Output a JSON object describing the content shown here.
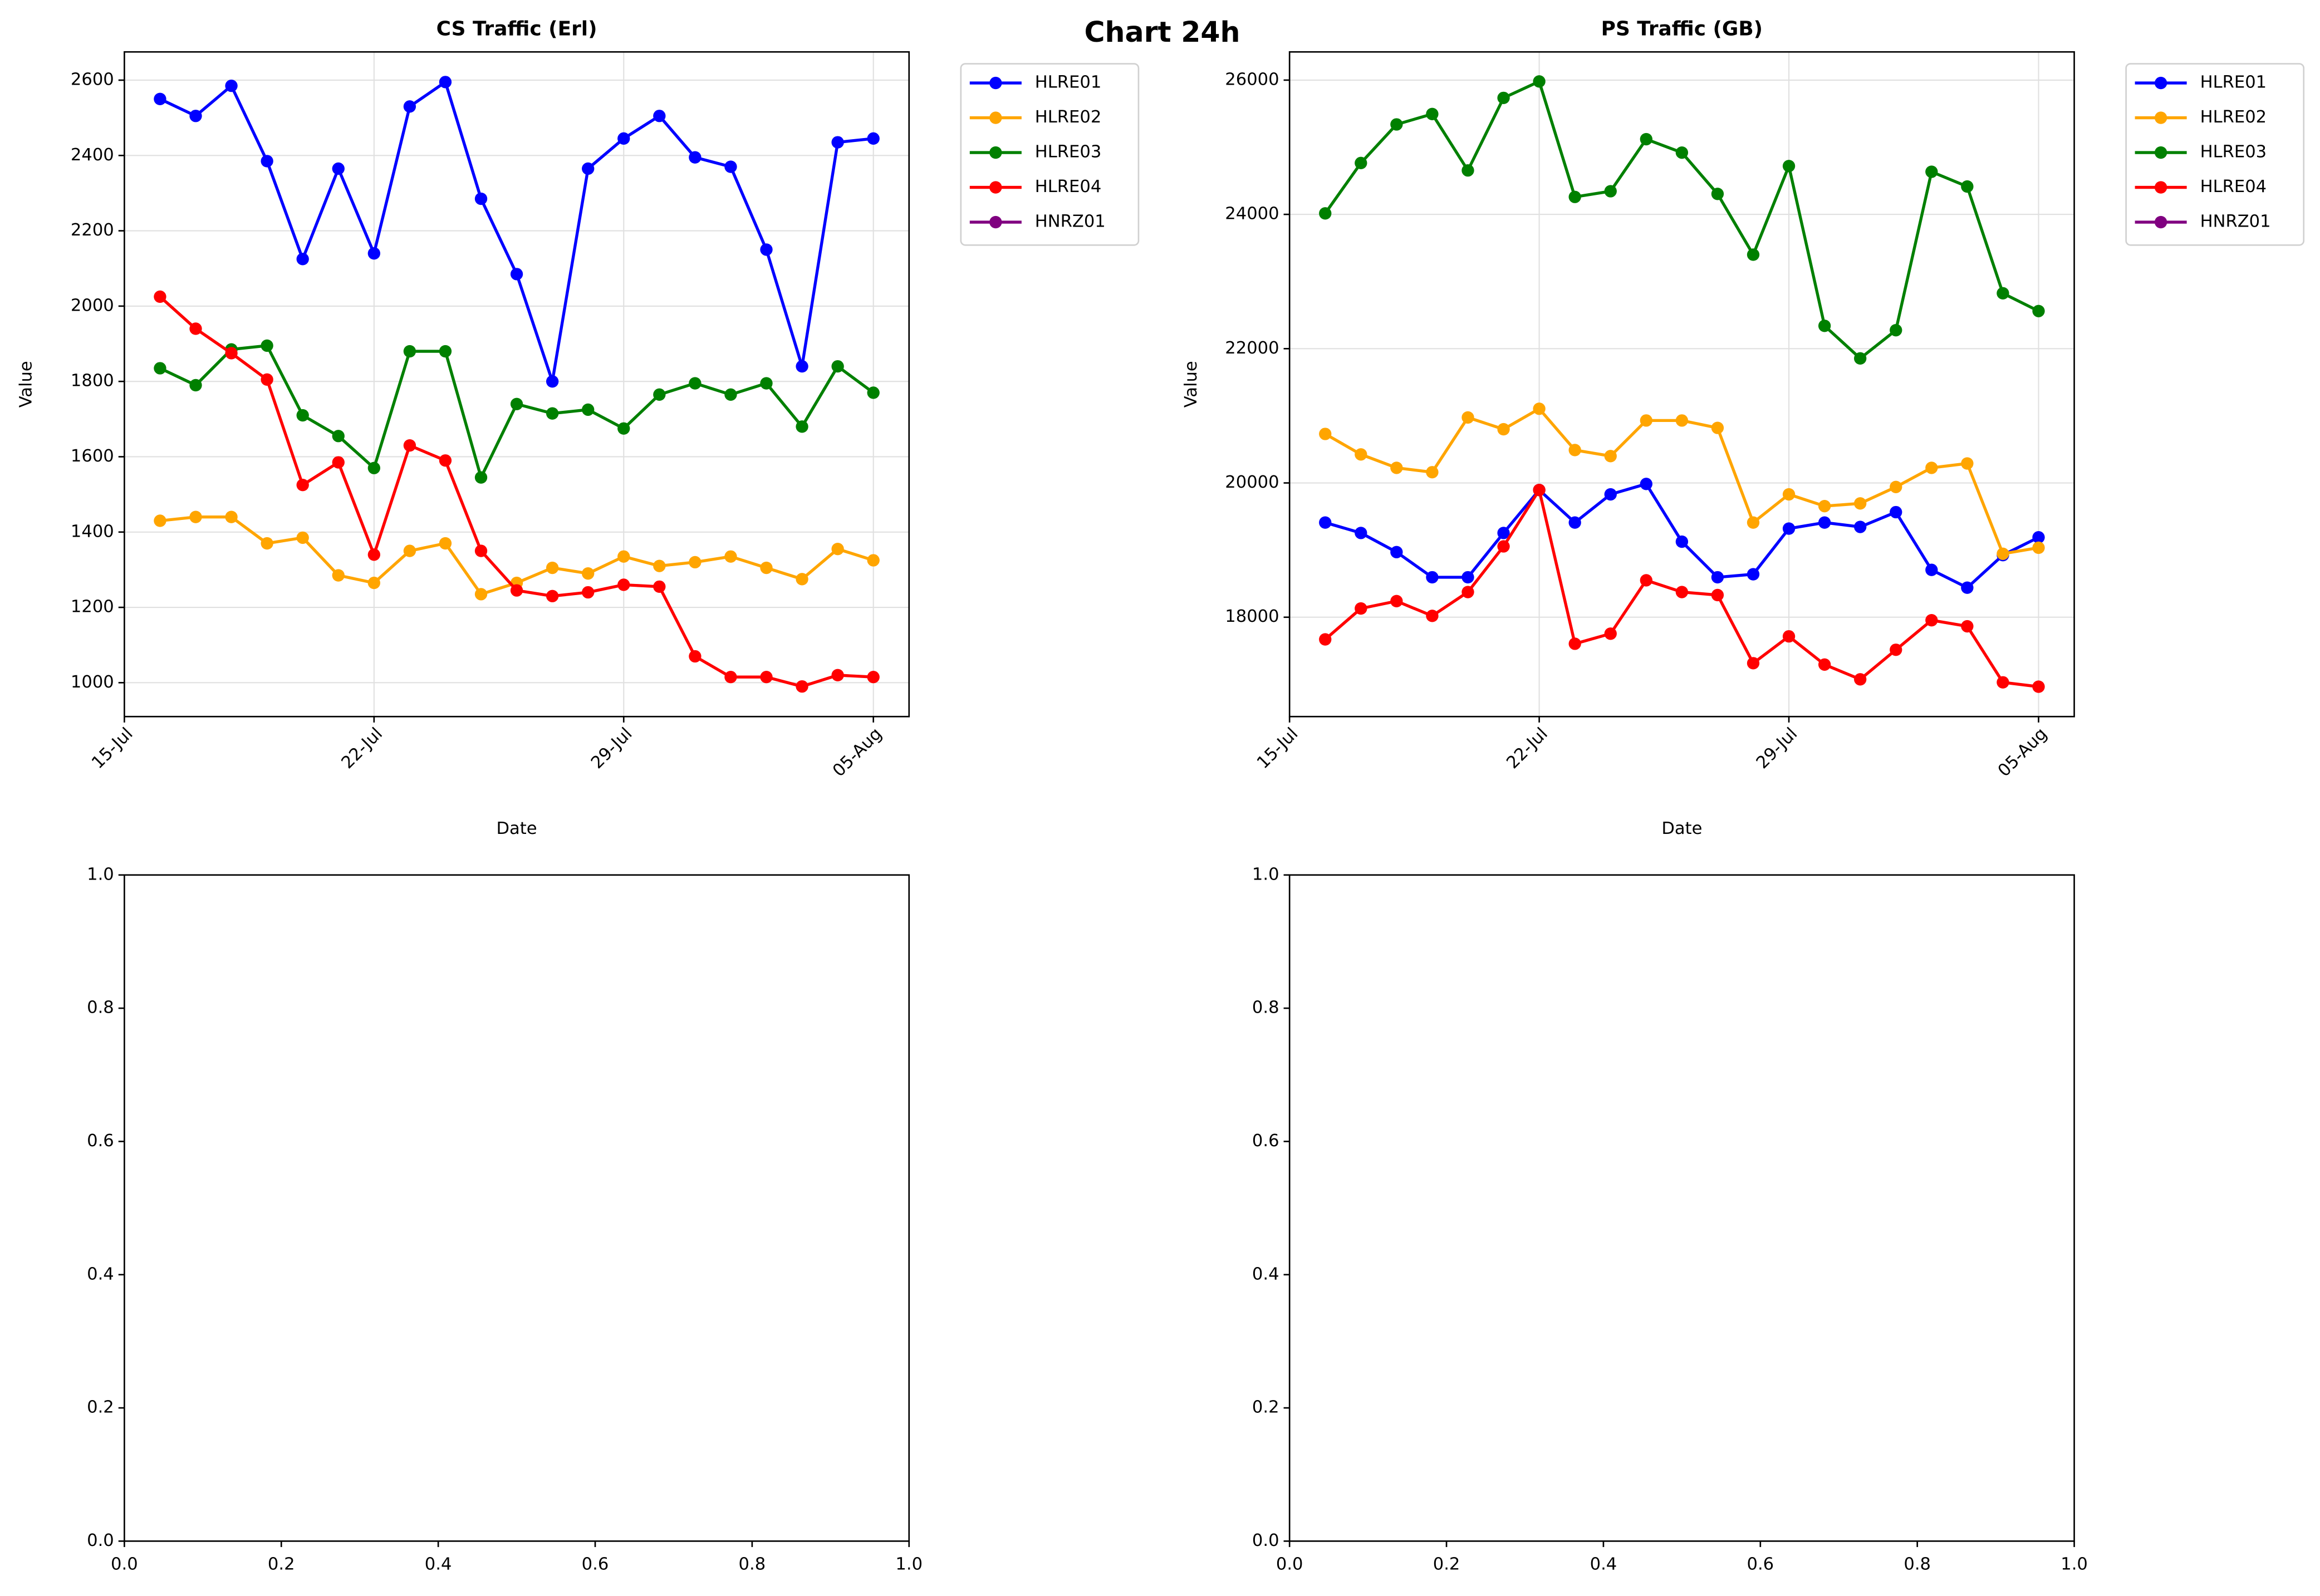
{
  "title": "Chart 24h",
  "chart_data": [
    {
      "type": "line",
      "title": "CS Traffic (Erl)",
      "xlabel": "Date",
      "ylabel": "Value",
      "x": [
        "16-Jul",
        "17-Jul",
        "18-Jul",
        "19-Jul",
        "20-Jul",
        "21-Jul",
        "22-Jul",
        "23-Jul",
        "24-Jul",
        "25-Jul",
        "26-Jul",
        "27-Jul",
        "28-Jul",
        "29-Jul",
        "30-Jul",
        "31-Jul",
        "01-Aug",
        "02-Aug",
        "03-Aug",
        "04-Aug",
        "05-Aug"
      ],
      "series": [
        {
          "name": "HLRE01",
          "color": "#0000ff",
          "values": [
            2550,
            2505,
            2585,
            2385,
            2125,
            2365,
            2140,
            2530,
            2595,
            2285,
            2085,
            1800,
            2365,
            2445,
            2505,
            2395,
            2370,
            2150,
            1840,
            2435,
            2445
          ]
        },
        {
          "name": "HLRE02",
          "color": "#ffa500",
          "values": [
            1430,
            1440,
            1440,
            1370,
            1385,
            1285,
            1265,
            1350,
            1370,
            1235,
            1265,
            1305,
            1290,
            1335,
            1310,
            1320,
            1335,
            1305,
            1275,
            1355,
            1325
          ]
        },
        {
          "name": "HLRE03",
          "color": "#008000",
          "values": [
            1835,
            1790,
            1885,
            1895,
            1710,
            1655,
            1570,
            1880,
            1880,
            1545,
            1740,
            1715,
            1725,
            1675,
            1765,
            1795,
            1765,
            1795,
            1680,
            1840,
            1770
          ]
        },
        {
          "name": "HLRE04",
          "color": "#ff0000",
          "values": [
            2025,
            1940,
            1875,
            1805,
            1525,
            1585,
            1340,
            1630,
            1590,
            1350,
            1245,
            1230,
            1240,
            1260,
            1255,
            1070,
            1015,
            1015,
            990,
            1020,
            1015
          ]
        },
        {
          "name": "HNRZ01",
          "color": "#800080",
          "values": [
            null,
            null,
            null,
            null,
            null,
            null,
            null,
            null,
            null,
            null,
            null,
            null,
            null,
            null,
            null,
            null,
            null,
            null,
            null,
            null,
            null
          ]
        }
      ],
      "xlim": [
        "15-Jul",
        "06-Aug"
      ],
      "xticks": [
        "15-Jul",
        "22-Jul",
        "29-Jul",
        "05-Aug"
      ],
      "xtick_rotation": 45,
      "ylim": [
        910,
        2675
      ],
      "yticks": [
        1000,
        1200,
        1400,
        1600,
        1800,
        2000,
        2200,
        2400,
        2600
      ],
      "grid": true,
      "legend": "outside-right"
    },
    {
      "type": "line",
      "title": "PS Traffic (GB)",
      "xlabel": "Date",
      "ylabel": "Value",
      "x": [
        "16-Jul",
        "17-Jul",
        "18-Jul",
        "19-Jul",
        "20-Jul",
        "21-Jul",
        "22-Jul",
        "23-Jul",
        "24-Jul",
        "25-Jul",
        "26-Jul",
        "27-Jul",
        "28-Jul",
        "29-Jul",
        "30-Jul",
        "31-Jul",
        "01-Aug",
        "02-Aug",
        "03-Aug",
        "04-Aug",
        "05-Aug"
      ],
      "series": [
        {
          "name": "HLRE01",
          "color": "#0000ff",
          "values": [
            19410,
            19255,
            18970,
            18595,
            18595,
            19255,
            19895,
            19410,
            19830,
            19985,
            19125,
            18595,
            18640,
            19320,
            19410,
            19345,
            19565,
            18705,
            18440,
            18925,
            19190
          ]
        },
        {
          "name": "HLRE02",
          "color": "#ffa500",
          "values": [
            20730,
            20425,
            20225,
            20160,
            20975,
            20800,
            21105,
            20490,
            20400,
            20930,
            20930,
            20820,
            19410,
            19830,
            19655,
            19695,
            19940,
            20225,
            20290,
            18945,
            19035
          ]
        },
        {
          "name": "HLRE03",
          "color": "#008000",
          "values": [
            24015,
            24765,
            25340,
            25495,
            24655,
            25735,
            25980,
            24260,
            24345,
            25120,
            24920,
            24305,
            23400,
            24720,
            22340,
            21855,
            22275,
            24635,
            24415,
            22825,
            22560
          ]
        },
        {
          "name": "HLRE04",
          "color": "#ff0000",
          "values": [
            17670,
            18130,
            18240,
            18020,
            18375,
            19055,
            19895,
            17605,
            17755,
            18550,
            18375,
            18330,
            17315,
            17715,
            17295,
            17075,
            17515,
            17955,
            17865,
            17030,
            16965
          ]
        },
        {
          "name": "HNRZ01",
          "color": "#800080",
          "values": [
            null,
            null,
            null,
            null,
            null,
            null,
            null,
            null,
            null,
            null,
            null,
            null,
            null,
            null,
            null,
            null,
            null,
            null,
            null,
            null,
            null
          ]
        }
      ],
      "xlim": [
        "15-Jul",
        "06-Aug"
      ],
      "xticks": [
        "15-Jul",
        "22-Jul",
        "29-Jul",
        "05-Aug"
      ],
      "xtick_rotation": 45,
      "ylim": [
        16520,
        26420
      ],
      "yticks": [
        18000,
        20000,
        22000,
        24000,
        26000
      ],
      "grid": true,
      "legend": "outside-right"
    },
    {
      "type": "line",
      "xlim": [
        0,
        1
      ],
      "ylim": [
        0,
        1
      ],
      "xticks": [
        {
          "value": 0,
          "label": "0.0"
        },
        {
          "value": 0.2,
          "label": "0.2"
        },
        {
          "value": 0.4,
          "label": "0.4"
        },
        {
          "value": 0.6,
          "label": "0.6"
        },
        {
          "value": 0.8,
          "label": "0.8"
        },
        {
          "value": 1,
          "label": "1.0"
        }
      ],
      "yticks": [
        {
          "value": 0,
          "label": "0.0"
        },
        {
          "value": 0.2,
          "label": "0.2"
        },
        {
          "value": 0.4,
          "label": "0.4"
        },
        {
          "value": 0.6,
          "label": "0.6"
        },
        {
          "value": 0.8,
          "label": "0.8"
        },
        {
          "value": 1,
          "label": "1.0"
        }
      ],
      "grid": false
    },
    {
      "type": "line",
      "xlim": [
        0,
        1
      ],
      "ylim": [
        0,
        1
      ],
      "xticks": [
        {
          "value": 0,
          "label": "0.0"
        },
        {
          "value": 0.2,
          "label": "0.2"
        },
        {
          "value": 0.4,
          "label": "0.4"
        },
        {
          "value": 0.6,
          "label": "0.6"
        },
        {
          "value": 0.8,
          "label": "0.8"
        },
        {
          "value": 1,
          "label": "1.0"
        }
      ],
      "yticks": [
        {
          "value": 0,
          "label": "0.0"
        },
        {
          "value": 0.2,
          "label": "0.2"
        },
        {
          "value": 0.4,
          "label": "0.4"
        },
        {
          "value": 0.6,
          "label": "0.6"
        },
        {
          "value": 0.8,
          "label": "0.8"
        },
        {
          "value": 1,
          "label": "1.0"
        }
      ],
      "grid": false
    }
  ]
}
